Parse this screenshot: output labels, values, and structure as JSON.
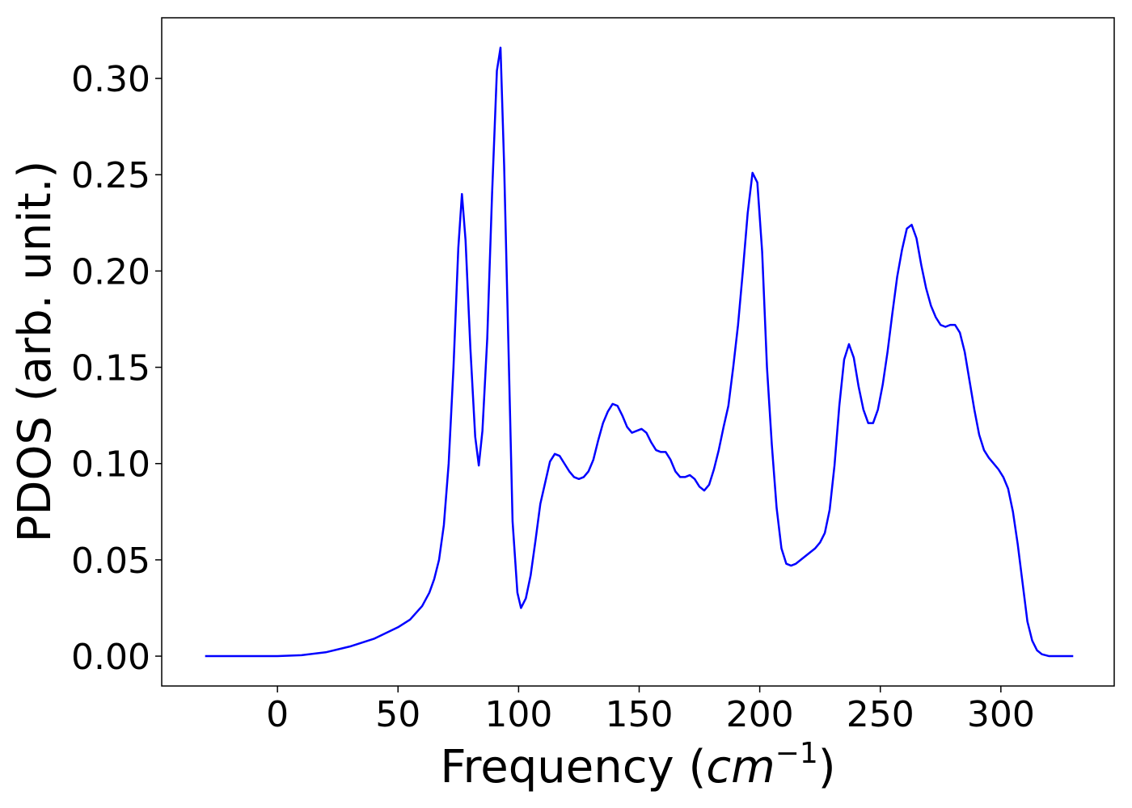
{
  "chart_data": {
    "type": "line",
    "xlabel": [
      "Frequency (",
      "cm",
      "−1",
      ")"
    ],
    "ylabel": "PDOS (arb. unit.)",
    "x": [
      -30,
      0,
      10,
      20,
      30,
      40,
      50,
      55,
      60,
      63,
      65,
      67,
      69,
      71,
      73,
      75,
      76.5,
      78,
      80,
      82,
      83.5,
      85,
      87,
      89,
      91,
      92.5,
      94,
      96,
      97.5,
      99.5,
      101,
      103,
      105,
      107,
      109,
      111,
      113,
      115,
      117,
      119,
      121,
      123,
      125,
      127,
      129,
      131,
      133,
      135,
      137,
      139,
      141,
      143,
      145,
      147,
      149,
      151,
      153,
      155,
      157,
      159,
      161,
      163,
      165,
      167,
      169,
      171,
      173,
      175,
      177,
      179,
      181,
      183,
      185,
      187,
      189,
      191,
      193,
      195,
      197,
      199,
      201,
      203,
      205,
      207,
      209,
      211,
      213,
      215,
      217,
      219,
      221,
      223,
      225,
      227,
      229,
      231,
      233,
      235,
      237,
      239,
      241,
      243,
      245,
      247,
      249,
      251,
      253,
      255,
      257,
      259,
      261,
      263,
      265,
      267,
      269,
      271,
      273,
      275,
      277,
      279,
      281,
      283,
      285,
      287,
      289,
      291,
      293,
      295,
      297,
      299,
      301,
      303,
      305,
      307,
      309,
      311,
      313,
      315,
      317,
      320,
      330
    ],
    "series": [
      {
        "color": "#0000ff",
        "values": [
          0,
          0,
          0.0005,
          0.002,
          0.005,
          0.009,
          0.015,
          0.019,
          0.026,
          0.033,
          0.04,
          0.05,
          0.068,
          0.1,
          0.15,
          0.212,
          0.24,
          0.216,
          0.16,
          0.114,
          0.099,
          0.117,
          0.165,
          0.24,
          0.304,
          0.316,
          0.255,
          0.15,
          0.07,
          0.033,
          0.025,
          0.03,
          0.042,
          0.06,
          0.079,
          0.09,
          0.101,
          0.105,
          0.104,
          0.1,
          0.096,
          0.093,
          0.092,
          0.093,
          0.096,
          0.102,
          0.112,
          0.121,
          0.127,
          0.131,
          0.13,
          0.125,
          0.119,
          0.116,
          0.117,
          0.118,
          0.116,
          0.111,
          0.107,
          0.106,
          0.106,
          0.102,
          0.096,
          0.093,
          0.093,
          0.094,
          0.092,
          0.088,
          0.086,
          0.089,
          0.097,
          0.107,
          0.119,
          0.13,
          0.15,
          0.172,
          0.2,
          0.23,
          0.251,
          0.246,
          0.21,
          0.15,
          0.11,
          0.077,
          0.056,
          0.048,
          0.047,
          0.048,
          0.05,
          0.052,
          0.054,
          0.056,
          0.059,
          0.064,
          0.076,
          0.099,
          0.13,
          0.154,
          0.162,
          0.155,
          0.14,
          0.128,
          0.121,
          0.121,
          0.128,
          0.141,
          0.158,
          0.178,
          0.197,
          0.211,
          0.222,
          0.224,
          0.217,
          0.203,
          0.191,
          0.182,
          0.176,
          0.172,
          0.171,
          0.172,
          0.172,
          0.168,
          0.158,
          0.143,
          0.128,
          0.115,
          0.107,
          0.103,
          0.1,
          0.097,
          0.093,
          0.087,
          0.075,
          0.058,
          0.038,
          0.018,
          0.008,
          0.003,
          0.001,
          0,
          0
        ]
      }
    ],
    "xlim": [
      -48,
      347
    ],
    "ylim": [
      -0.0155,
      0.3315
    ],
    "xticks": [
      0,
      50,
      100,
      150,
      200,
      250,
      300
    ],
    "yticks": [
      {
        "value": 0,
        "label": "0.00"
      },
      {
        "value": 0.05,
        "label": "0.05"
      },
      {
        "value": 0.1,
        "label": "0.10"
      },
      {
        "value": 0.15,
        "label": "0.15"
      },
      {
        "value": 0.2,
        "label": "0.20"
      },
      {
        "value": 0.25,
        "label": "0.25"
      },
      {
        "value": 0.3,
        "label": "0.30"
      }
    ]
  }
}
